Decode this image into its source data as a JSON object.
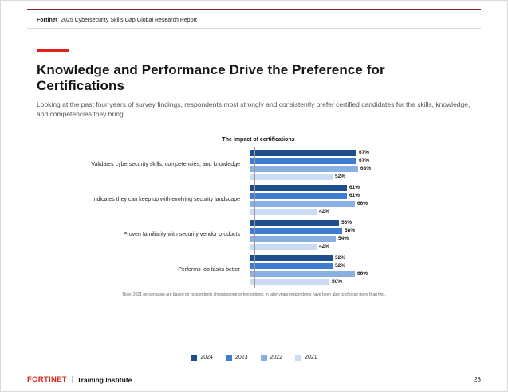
{
  "header": {
    "brand": "Fortinet",
    "report_title": "2025 Cybersecurity Skills Gap Global Research Report"
  },
  "main": {
    "title": "Knowledge and Performance Drive the Preference for Certifications",
    "subtitle": "Looking at the past four years of survey findings, respondents most strongly and consistently prefer certified candidates for the skills, knowledge, and competencies they bring.",
    "note": "Note: 2021 percentages are based on respondents choosing one or two options; in later years respondents have been able to choose more than two."
  },
  "chart_data": {
    "type": "bar",
    "orientation": "horizontal",
    "title": "The impact of certifications",
    "categories": [
      "Validates cybersecurity skills, competencies, and knowledge",
      "Indicates they can keep up with evolving security landscape",
      "Proven familiarity with security vendor products",
      "Performs job tasks better"
    ],
    "series": [
      {
        "name": "2024",
        "color": "#1e4e8c",
        "values": [
          67,
          61,
          56,
          52
        ]
      },
      {
        "name": "2023",
        "color": "#3e7cd1",
        "values": [
          67,
          61,
          58,
          52
        ]
      },
      {
        "name": "2022",
        "color": "#8ab0e2",
        "values": [
          68,
          66,
          54,
          66
        ]
      },
      {
        "name": "2021",
        "color": "#c9dcf4",
        "values": [
          52,
          42,
          42,
          50
        ]
      }
    ],
    "value_suffix": "%",
    "xlim": [
      0,
      100
    ],
    "grid": false,
    "legend_position": "bottom"
  },
  "footer": {
    "logo": "FORTINET",
    "label": "Training Institute",
    "page_number": "28"
  },
  "colors": {
    "accent_red": "#e32119",
    "top_rule_red": "#7d211a"
  }
}
